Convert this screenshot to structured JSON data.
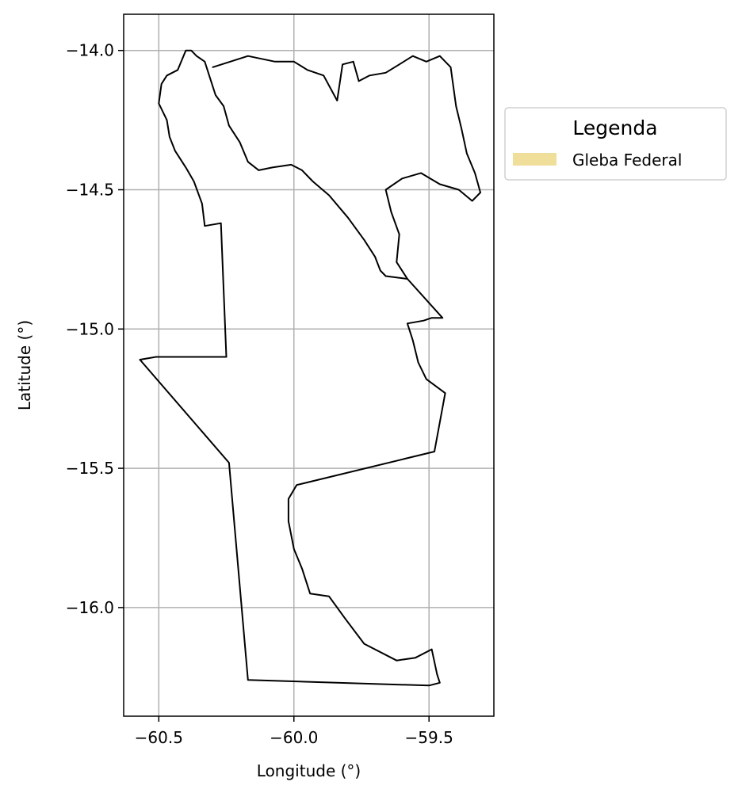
{
  "chart_data": {
    "type": "map",
    "xlabel": "Longitude (°)",
    "ylabel": "Latitude (°)",
    "xlim": [
      -60.63,
      -59.26
    ],
    "ylim": [
      -16.39,
      -13.87
    ],
    "xticks": [
      -60.5,
      -60.0,
      -59.5
    ],
    "xtick_labels": [
      "−60.5",
      "−60.0",
      "−59.5"
    ],
    "yticks": [
      -14.0,
      -14.5,
      -15.0,
      -15.5,
      -16.0
    ],
    "ytick_labels": [
      "−14.0",
      "−14.5",
      "−15.0",
      "−15.5",
      "−16.0"
    ],
    "grid": true,
    "legend": {
      "title": "Legenda",
      "placement": "outside-right",
      "entries": [
        {
          "label": "Gleba Federal",
          "color": "#f0de9b"
        }
      ]
    },
    "outline_color": "#000000",
    "grid_color": "#b0b0b0",
    "regions": [
      {
        "name": "",
        "coords": [
          [
            -60.5,
            -14.19
          ],
          [
            -60.49,
            -14.12
          ],
          [
            -60.47,
            -14.09
          ],
          [
            -60.43,
            -14.07
          ],
          [
            -60.4,
            -14.0
          ],
          [
            -60.38,
            -14.0
          ],
          [
            -60.36,
            -14.02
          ],
          [
            -60.33,
            -14.04
          ],
          [
            -60.31,
            -14.1
          ],
          [
            -60.29,
            -14.16
          ],
          [
            -60.26,
            -14.2
          ],
          [
            -60.24,
            -14.27
          ],
          [
            -60.2,
            -14.33
          ],
          [
            -60.17,
            -14.4
          ],
          [
            -60.13,
            -14.43
          ],
          [
            -60.08,
            -14.42
          ],
          [
            -60.01,
            -14.41
          ],
          [
            -59.97,
            -14.43
          ],
          [
            -59.93,
            -14.47
          ],
          [
            -59.87,
            -14.52
          ],
          [
            -59.8,
            -14.6
          ],
          [
            -59.74,
            -14.68
          ],
          [
            -59.7,
            -14.74
          ],
          [
            -59.68,
            -14.79
          ],
          [
            -59.66,
            -14.81
          ],
          [
            -59.58,
            -14.82
          ],
          [
            -59.45,
            -14.96
          ],
          [
            -59.49,
            -14.96
          ],
          [
            -59.52,
            -14.97
          ],
          [
            -59.58,
            -14.98
          ],
          [
            -59.56,
            -15.04
          ],
          [
            -59.54,
            -15.12
          ],
          [
            -59.51,
            -15.18
          ],
          [
            -59.44,
            -15.23
          ],
          [
            -59.48,
            -15.44
          ],
          [
            -59.99,
            -15.56
          ],
          [
            -60.02,
            -15.61
          ],
          [
            -60.02,
            -15.69
          ],
          [
            -60.0,
            -15.79
          ],
          [
            -59.97,
            -15.86
          ],
          [
            -59.94,
            -15.95
          ],
          [
            -59.87,
            -15.96
          ],
          [
            -59.81,
            -16.04
          ],
          [
            -59.74,
            -16.13
          ],
          [
            -59.62,
            -16.19
          ],
          [
            -59.55,
            -16.18
          ],
          [
            -59.49,
            -16.15
          ],
          [
            -59.47,
            -16.24
          ],
          [
            -59.46,
            -16.27
          ],
          [
            -59.5,
            -16.28
          ],
          [
            -60.17,
            -16.26
          ],
          [
            -60.24,
            -15.48
          ],
          [
            -60.57,
            -15.11
          ],
          [
            -60.51,
            -15.1
          ],
          [
            -60.25,
            -15.1
          ],
          [
            -60.27,
            -14.62
          ],
          [
            -60.33,
            -14.63
          ],
          [
            -60.34,
            -14.55
          ],
          [
            -60.37,
            -14.47
          ],
          [
            -60.4,
            -14.42
          ],
          [
            -60.44,
            -14.36
          ],
          [
            -60.46,
            -14.31
          ],
          [
            -60.47,
            -14.25
          ],
          [
            -60.5,
            -14.19
          ]
        ]
      },
      {
        "name": "",
        "coords": [
          [
            -60.3,
            -14.06
          ],
          [
            -60.17,
            -14.02
          ],
          [
            -60.07,
            -14.04
          ],
          [
            -60.0,
            -14.04
          ],
          [
            -59.95,
            -14.07
          ],
          [
            -59.89,
            -14.09
          ],
          [
            -59.84,
            -14.18
          ],
          [
            -59.82,
            -14.05
          ],
          [
            -59.78,
            -14.04
          ],
          [
            -59.76,
            -14.11
          ],
          [
            -59.72,
            -14.09
          ],
          [
            -59.66,
            -14.08
          ],
          [
            -59.61,
            -14.05
          ],
          [
            -59.56,
            -14.02
          ],
          [
            -59.51,
            -14.04
          ],
          [
            -59.46,
            -14.02
          ],
          [
            -59.42,
            -14.06
          ],
          [
            -59.41,
            -14.13
          ],
          [
            -59.4,
            -14.2
          ],
          [
            -59.38,
            -14.28
          ],
          [
            -59.36,
            -14.37
          ],
          [
            -59.33,
            -14.44
          ],
          [
            -59.31,
            -14.51
          ],
          [
            -59.34,
            -14.54
          ],
          [
            -59.39,
            -14.5
          ],
          [
            -59.46,
            -14.48
          ],
          [
            -59.53,
            -14.44
          ],
          [
            -59.6,
            -14.46
          ],
          [
            -59.66,
            -14.5
          ],
          [
            -59.64,
            -14.58
          ],
          [
            -59.61,
            -14.66
          ],
          [
            -59.62,
            -14.76
          ],
          [
            -59.58,
            -14.82
          ]
        ]
      }
    ]
  }
}
